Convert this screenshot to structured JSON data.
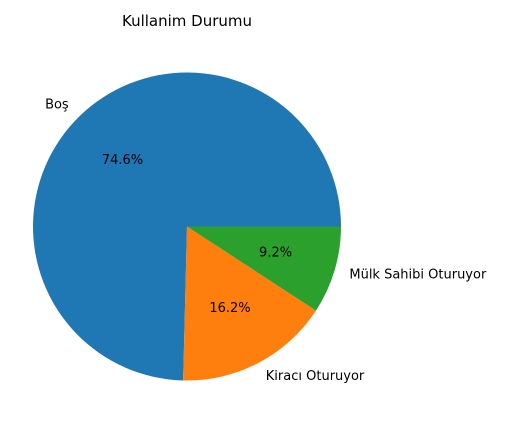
{
  "chart_data": {
    "type": "pie",
    "title": "Kullanim Durumu",
    "categories": [
      "Boş",
      "Kiracı Oturuyor",
      "Mülk Sahibi Oturuyor"
    ],
    "values": [
      74.6,
      16.2,
      9.2
    ],
    "value_labels": [
      "74.6%",
      "16.2%",
      "9.2%"
    ],
    "colors": [
      "#1f77b4",
      "#ff7f0e",
      "#2ca02c"
    ],
    "start_angle": "3 o'clock, counterclockwise",
    "legend": "none"
  }
}
